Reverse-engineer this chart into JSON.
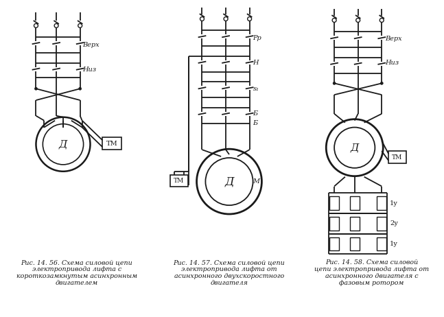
{
  "bg_color": "#ffffff",
  "line_color": "#1a1a1a",
  "caption1_line1": "Рис. 14. 56. Схема силовой цепи",
  "caption1_line2": "электропривода лифта с",
  "caption1_line3": "короткозамкнутым асинхронным",
  "caption1_line4": "двигателем",
  "caption2_line1": "Рис. 14. 57. Схема силовой цепи",
  "caption2_line2": "электропривода лифта от",
  "caption2_line3": "асинхронного двухскоростного",
  "caption2_line4": "двигателя",
  "caption3_line1": "Рис. 14. 58. Схема силовой",
  "caption3_line2": "цепи электропривода лифта от",
  "caption3_line3": "асинхронного двигателя с",
  "caption3_line4": "фазовым ротором",
  "label_verh": "Верх",
  "label_niz": "Низ",
  "label_d": "Д",
  "label_tm": "ТМ",
  "label_rp": "Рр",
  "label_n": "Н",
  "label_m": "М",
  "label_b": "Б",
  "label_s1": "s₁",
  "label_verh2": "Верх",
  "label_niz2": "Низ",
  "label_1u": "1у",
  "label_2u": "2у",
  "label_3u": "1у"
}
